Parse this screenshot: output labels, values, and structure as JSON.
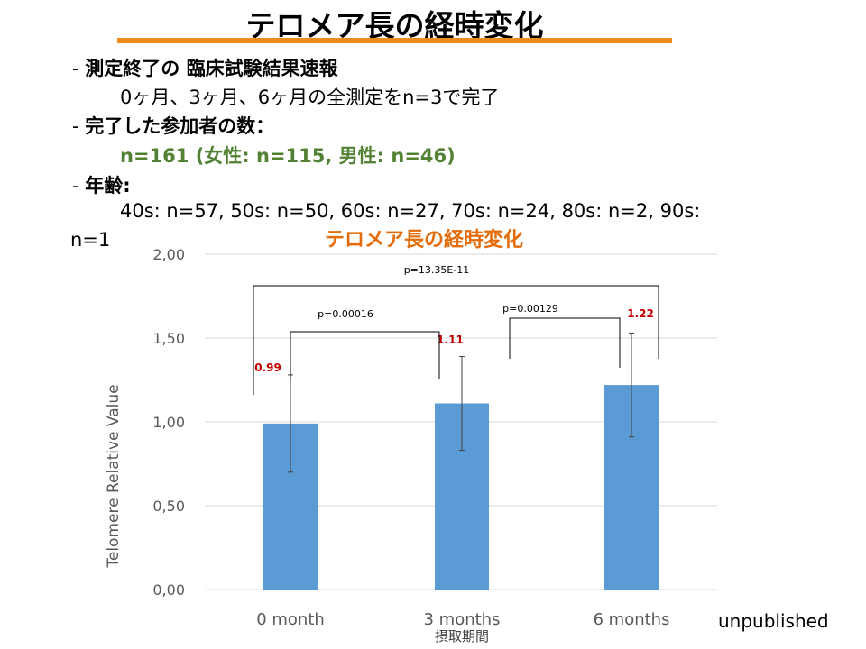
{
  "slide": {
    "title": "テロメア長の経時変化",
    "line1_dash": "- ",
    "line1": "測定終了の 臨床試験結果速報",
    "line2": "0ヶ月、3ヶ月、6ヶ月の全測定をn=3で完了",
    "line3_dash": "- ",
    "line3": "完了した参加者の数：",
    "line4": "n=161 (女性: n=115, 男性: n=46)",
    "line5_dash": "- ",
    "line5": "年齢:",
    "line6": "40s: n=57, 50s: n=50, 60s: n=27, 70s: n=24, 80s: n=2, 90s:",
    "line7": "n=1",
    "unpublished": "unpublished"
  },
  "chart_data": {
    "type": "bar",
    "title": "テロメア長の経時変化",
    "categories": [
      "0 month",
      "3 months",
      "6 months"
    ],
    "values": [
      0.99,
      1.11,
      1.22
    ],
    "value_labels": [
      "0.99",
      "1.11",
      "1.22"
    ],
    "error": [
      0.29,
      0.28,
      0.31
    ],
    "ylabel": "Telomere Relative Value",
    "xlabel": "摂取期間",
    "ylim": [
      0,
      2
    ],
    "yticks": [
      0,
      0.5,
      1.0,
      1.5,
      2.0
    ],
    "ytick_labels": [
      "0,00",
      "0,50",
      "1,00",
      "1,50",
      "2,00"
    ],
    "grid": true,
    "comparisons": [
      {
        "from": 0,
        "to": 1,
        "label": "p=0.00016"
      },
      {
        "from": 1,
        "to": 2,
        "label": "p=0.00129"
      },
      {
        "from": 0,
        "to": 2,
        "label": "p=13.35E-11"
      }
    ],
    "colors": {
      "bar": "#5b9bd5",
      "value_label": "#c00000",
      "title": "#e46c0a",
      "grid": "#d9d9d9",
      "axis_text": "#595959"
    }
  }
}
